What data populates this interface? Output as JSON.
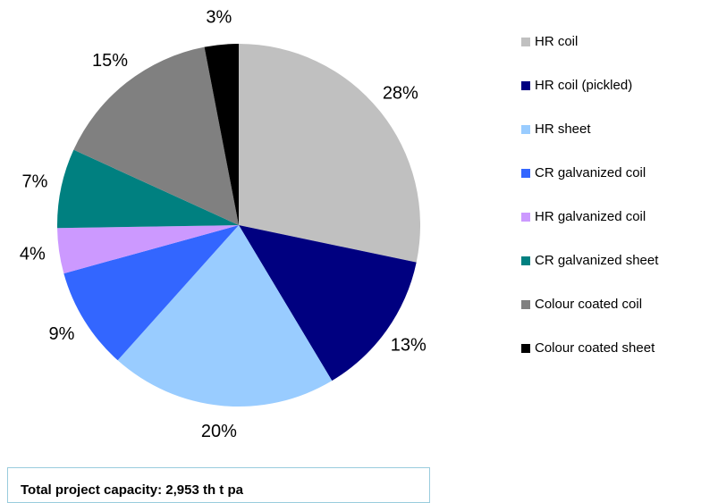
{
  "chart_data": {
    "type": "pie",
    "categories": [
      "HR coil",
      "HR coil (pickled)",
      "HR sheet",
      "CR galvanized coil",
      "HR galvanized coil",
      "CR galvanized sheet",
      "Colour coated coil",
      "Colour coated sheet"
    ],
    "values": [
      28,
      13,
      20,
      9,
      4,
      7,
      15,
      3
    ],
    "value_labels": [
      "28%",
      "13%",
      "20%",
      "9%",
      "4%",
      "7%",
      "15%",
      "3%"
    ],
    "colors": [
      "#c0c0c0",
      "#000080",
      "#99ccff",
      "#3366ff",
      "#cc99ff",
      "#008080",
      "#808080",
      "#000000"
    ],
    "legend": "right",
    "note": "Total project capacity: 2,953 th t pa"
  }
}
